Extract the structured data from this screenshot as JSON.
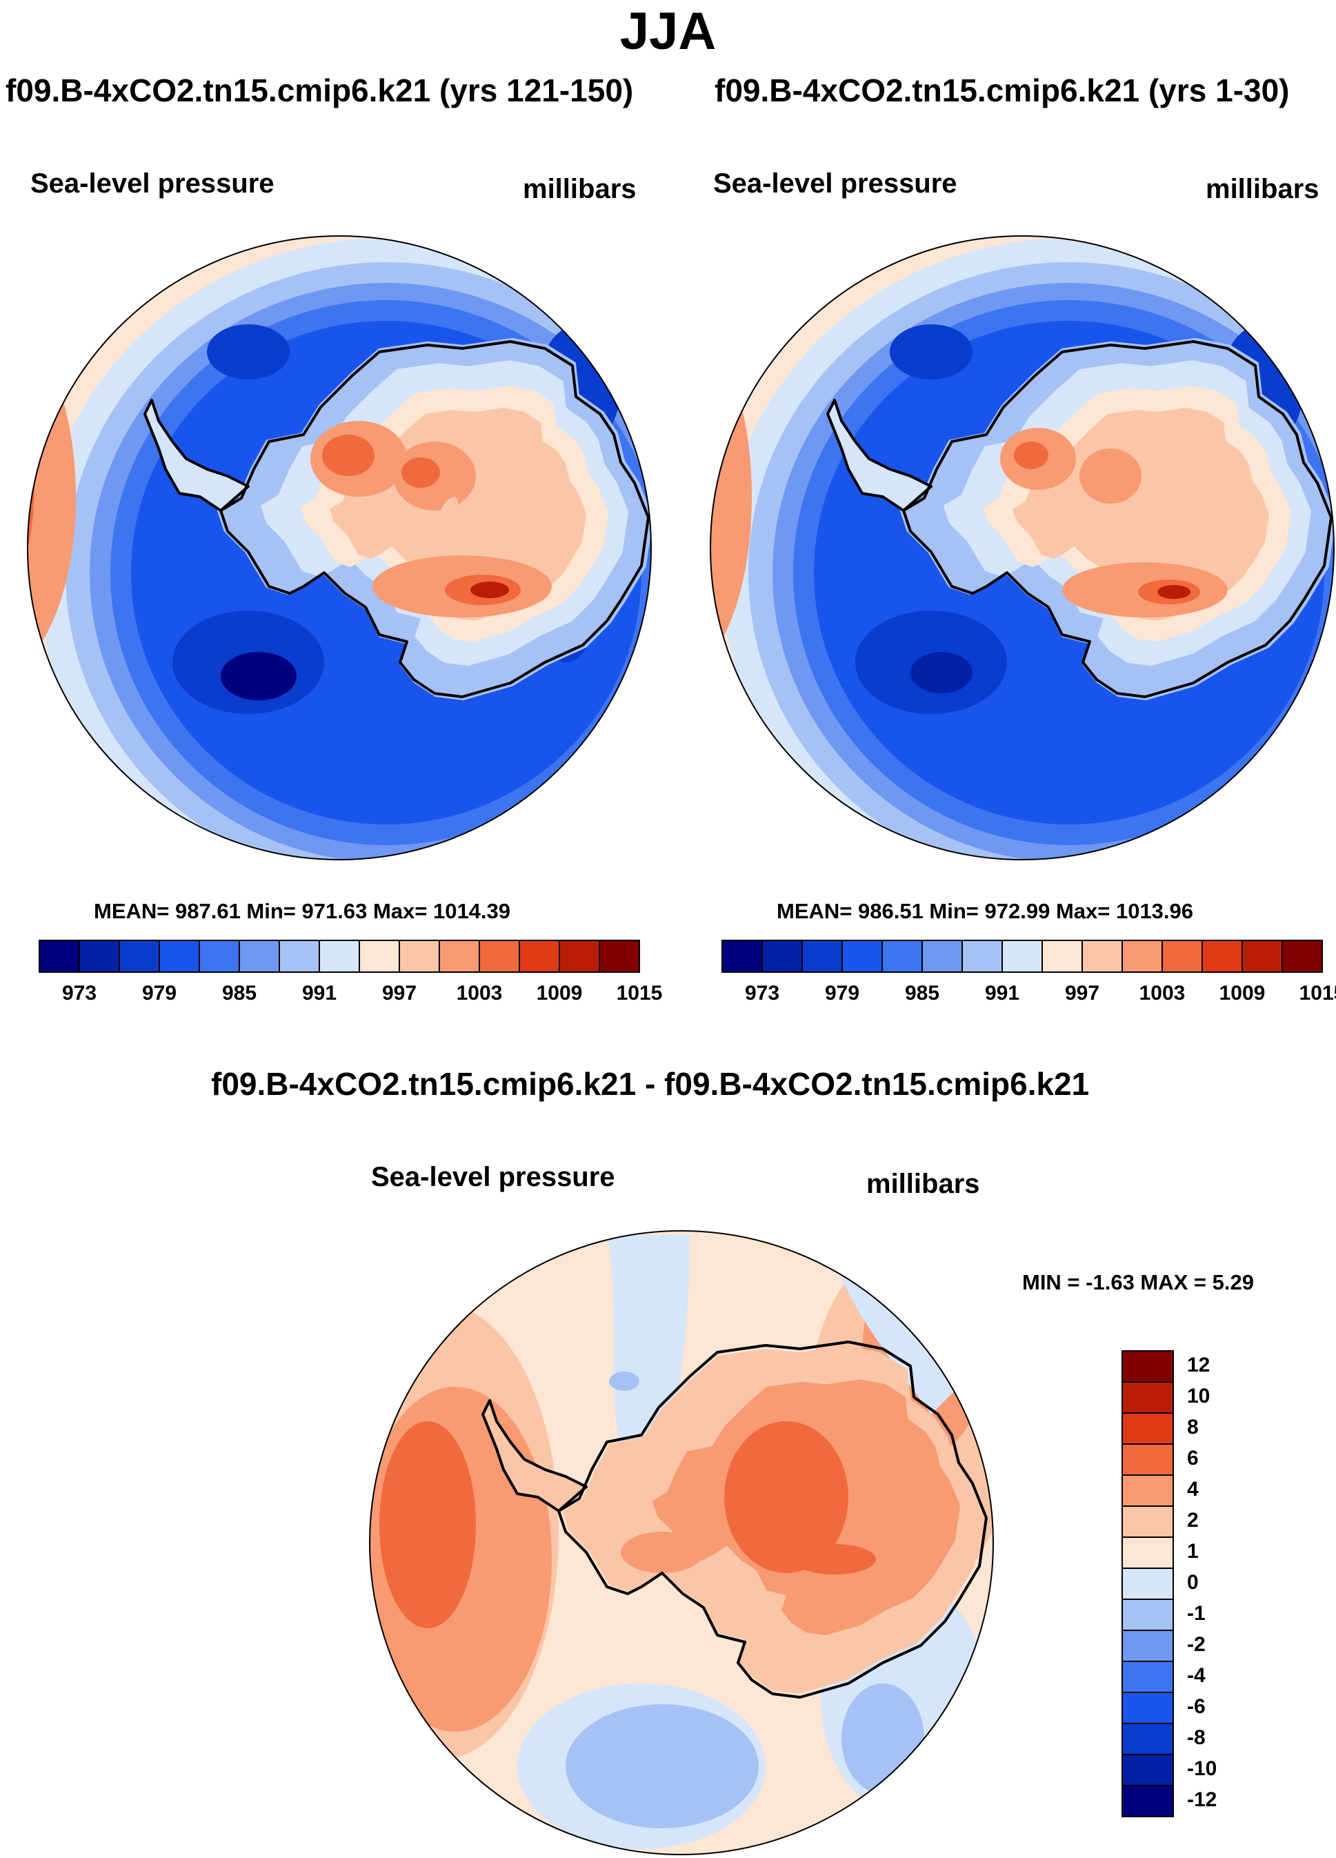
{
  "title": "JJA",
  "panels": [
    {
      "case_title": "f09.B-4xCO2.tn15.cmip6.k21 (yrs 121-150)",
      "variable": "Sea-level pressure",
      "units": "millibars",
      "stats": "MEAN= 987.61  Min= 971.63  Max= 1014.39"
    },
    {
      "case_title": "f09.B-4xCO2.tn15.cmip6.k21 (yrs 1-30)",
      "variable": "Sea-level pressure",
      "units": "millibars",
      "stats": "MEAN= 986.51  Min= 972.99  Max= 1013.96"
    }
  ],
  "diff_panel": {
    "case_title": "f09.B-4xCO2.tn15.cmip6.k21 - f09.B-4xCO2.tn15.cmip6.k21",
    "variable": "Sea-level pressure",
    "units": "millibars",
    "stats": "MIN =  -1.63 MAX =   5.29"
  },
  "colorbar_top": {
    "colors": [
      "#00007f",
      "#0421a6",
      "#0a3ccd",
      "#1a55eb",
      "#3d74f0",
      "#6f98f2",
      "#a6c2f5",
      "#d6e6fa",
      "#fde6d4",
      "#fbc6a8",
      "#f89a72",
      "#f06a3e",
      "#e03a14",
      "#b91e05",
      "#830000"
    ],
    "labels": [
      "973",
      "979",
      "985",
      "991",
      "997",
      "1003",
      "1009",
      "1015"
    ]
  },
  "colorbar_diff": {
    "colors_top_to_bottom": [
      "#830000",
      "#b91e05",
      "#e03a14",
      "#f06a3e",
      "#f89a72",
      "#fbc6a8",
      "#fde6d4",
      "#d6e6fa",
      "#a6c2f5",
      "#6f98f2",
      "#3d74f0",
      "#1a55eb",
      "#0a3ccd",
      "#0421a6",
      "#00007f"
    ],
    "labels_top_to_bottom": [
      "12",
      "10",
      "8",
      "6",
      "4",
      "2",
      "1",
      "0",
      "-1",
      "-2",
      "-4",
      "-6",
      "-8",
      "-10",
      "-12"
    ]
  },
  "chart_data": [
    {
      "type": "heatmap",
      "title": "f09.B-4xCO2.tn15.cmip6.k21 (yrs 121-150)",
      "projection": "south-polar-stereographic",
      "variable": "Sea-level pressure",
      "units": "millibars",
      "mean": 987.61,
      "min": 971.63,
      "max": 1014.39,
      "contour_levels": [
        973,
        976,
        979,
        982,
        985,
        988,
        991,
        994,
        997,
        1000,
        1003,
        1006,
        1009,
        1012,
        1015
      ]
    },
    {
      "type": "heatmap",
      "title": "f09.B-4xCO2.tn15.cmip6.k21 (yrs 1-30)",
      "projection": "south-polar-stereographic",
      "variable": "Sea-level pressure",
      "units": "millibars",
      "mean": 986.51,
      "min": 972.99,
      "max": 1013.96,
      "contour_levels": [
        973,
        976,
        979,
        982,
        985,
        988,
        991,
        994,
        997,
        1000,
        1003,
        1006,
        1009,
        1012,
        1015
      ]
    },
    {
      "type": "heatmap",
      "title": "f09.B-4xCO2.tn15.cmip6.k21 - f09.B-4xCO2.tn15.cmip6.k21",
      "projection": "south-polar-stereographic",
      "variable": "Sea-level pressure",
      "units": "millibars",
      "min": -1.63,
      "max": 5.29,
      "contour_levels": [
        -12,
        -10,
        -8,
        -6,
        -4,
        -2,
        -1,
        0,
        1,
        2,
        4,
        6,
        8,
        10,
        12
      ]
    }
  ]
}
